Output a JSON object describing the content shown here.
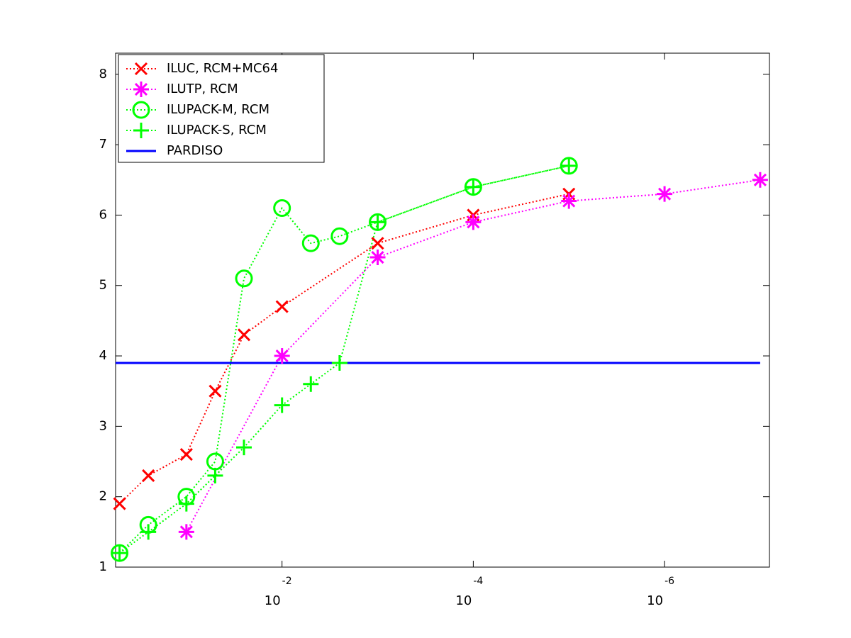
{
  "chart_data": {
    "type": "line",
    "xscale": "log",
    "xlim": [
      0.55,
      8e-08
    ],
    "ylim": [
      1,
      8.3
    ],
    "xticks": [
      {
        "value": 0.01,
        "label": "10",
        "exponent": "-2"
      },
      {
        "value": 0.0001,
        "label": "10",
        "exponent": "-4"
      },
      {
        "value": 1e-06,
        "label": "10",
        "exponent": "-6"
      }
    ],
    "yticks": [
      1,
      2,
      3,
      4,
      5,
      6,
      7,
      8
    ],
    "legend": "upper left",
    "series": [
      {
        "name": "ILUC, RCM+MC64",
        "color": "#ff0000",
        "marker": "x",
        "linestyle": "dotted",
        "x": [
          0.5,
          0.25,
          0.1,
          0.05,
          0.025,
          0.01,
          0.001,
          0.0001,
          1e-05
        ],
        "values": [
          1.9,
          2.3,
          2.6,
          3.5,
          4.3,
          4.7,
          5.6,
          6.0,
          6.3
        ]
      },
      {
        "name": "ILUTP, RCM",
        "color": "#ff00ff",
        "marker": "*",
        "linestyle": "dotted",
        "x": [
          0.1,
          0.01,
          0.001,
          0.0001,
          1e-05,
          1e-06,
          1e-07
        ],
        "values": [
          1.5,
          4.0,
          5.4,
          5.9,
          6.2,
          6.3,
          6.5
        ]
      },
      {
        "name": "ILUPACK-M, RCM",
        "color": "#00ff00",
        "marker": "o",
        "linestyle": "dotted",
        "x": [
          0.5,
          0.25,
          0.1,
          0.05,
          0.025,
          0.01,
          0.005,
          0.0025,
          0.001,
          0.0001,
          1e-05
        ],
        "values": [
          1.2,
          1.6,
          2.0,
          2.5,
          5.1,
          6.1,
          5.6,
          5.7,
          5.9,
          6.4,
          6.7
        ]
      },
      {
        "name": "ILUPACK-S, RCM",
        "color": "#00ff00",
        "marker": "+",
        "linestyle": "dotted",
        "x": [
          0.5,
          0.25,
          0.1,
          0.05,
          0.025,
          0.01,
          0.005,
          0.0025,
          0.001,
          0.0001,
          1e-05
        ],
        "values": [
          1.2,
          1.5,
          1.9,
          2.3,
          2.7,
          3.3,
          3.6,
          3.9,
          5.9,
          6.4,
          6.7
        ]
      },
      {
        "name": "PARDISO",
        "color": "#0000ff",
        "marker": "none",
        "linestyle": "solid",
        "x": [
          0.55,
          1e-07
        ],
        "values": [
          3.9,
          3.9
        ]
      }
    ]
  }
}
